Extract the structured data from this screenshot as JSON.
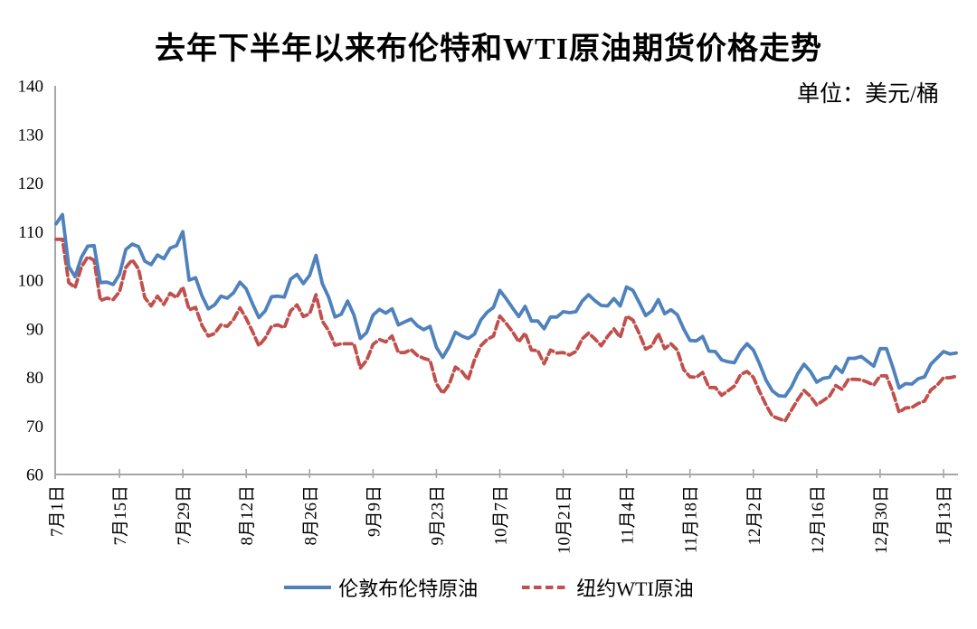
{
  "chart_data": {
    "type": "line",
    "title": "去年下半年以来布伦特和WTI原油期货价格走势",
    "unit_label": "单位：美元/桶",
    "ylim": [
      60,
      140
    ],
    "y_ticks": [
      60,
      70,
      80,
      90,
      100,
      110,
      120,
      130,
      140
    ],
    "x_tick_labels": [
      "7月1日",
      "7月15日",
      "7月29日",
      "8月12日",
      "8月26日",
      "9月9日",
      "9月23日",
      "10月7日",
      "10月21日",
      "11月4日",
      "11月18日",
      "12月2日",
      "12月16日",
      "12月30日",
      "1月13日"
    ],
    "x_tick_indices": [
      0,
      10,
      20,
      30,
      40,
      50,
      60,
      70,
      80,
      90,
      100,
      110,
      120,
      130,
      140
    ],
    "grid": false,
    "legend_position": "bottom",
    "axis_color": "#a6a6a6",
    "series": [
      {
        "id": "brent",
        "name": "伦敦布伦特原油",
        "color": "#4F81BD",
        "line_style": "solid",
        "values": [
          111.6,
          113.5,
          102.8,
          100.7,
          104.7,
          107.0,
          107.1,
          99.5,
          99.6,
          99.1,
          101.2,
          106.3,
          107.4,
          106.9,
          103.9,
          103.2,
          105.2,
          104.4,
          106.6,
          107.1,
          110.0,
          100.0,
          100.5,
          96.8,
          94.1,
          94.9,
          96.7,
          96.3,
          97.4,
          99.6,
          98.2,
          95.1,
          92.3,
          93.7,
          96.6,
          96.7,
          96.5,
          100.2,
          101.2,
          99.3,
          101.0,
          105.1,
          99.3,
          96.5,
          92.4,
          93.0,
          95.7,
          92.8,
          88.0,
          89.2,
          92.8,
          94.0,
          93.2,
          94.1,
          90.8,
          91.4,
          92.0,
          90.6,
          89.8,
          90.5,
          86.2,
          84.1,
          86.3,
          89.3,
          88.5,
          88.0,
          88.9,
          91.8,
          93.4,
          94.4,
          97.9,
          96.2,
          94.3,
          92.5,
          94.6,
          91.6,
          91.6,
          90.0,
          92.4,
          92.4,
          93.5,
          93.3,
          93.5,
          95.7,
          97.0,
          95.8,
          94.8,
          94.7,
          96.2,
          94.7,
          98.6,
          97.9,
          95.4,
          92.7,
          93.7,
          96.0,
          93.1,
          93.9,
          92.9,
          90.0,
          87.6,
          87.5,
          88.4,
          85.4,
          85.3,
          83.6,
          83.2,
          83.0,
          85.4,
          86.9,
          85.6,
          82.7,
          79.4,
          77.2,
          76.2,
          76.1,
          78.0,
          80.7,
          82.7,
          81.2,
          79.0,
          79.8,
          80.0,
          82.2,
          81.0,
          83.9,
          83.9,
          84.3,
          83.3,
          82.3,
          85.9,
          85.9,
          82.1,
          77.8,
          78.7,
          78.6,
          79.7,
          80.1,
          82.7,
          84.0,
          85.3,
          84.8,
          85.0
        ]
      },
      {
        "id": "wti",
        "name": "纽约WTI原油",
        "color": "#C0504D",
        "line_style": "dashed",
        "values": [
          108.4,
          108.4,
          99.5,
          98.5,
          102.7,
          104.8,
          104.1,
          95.8,
          96.3,
          96.0,
          97.6,
          102.6,
          104.2,
          102.3,
          96.4,
          94.7,
          96.7,
          95.0,
          97.3,
          96.4,
          98.6,
          93.9,
          94.4,
          90.7,
          88.5,
          89.0,
          90.8,
          90.5,
          91.9,
          94.3,
          92.1,
          89.4,
          86.5,
          88.1,
          90.5,
          90.8,
          90.2,
          93.7,
          94.9,
          92.5,
          93.1,
          97.0,
          91.6,
          89.6,
          86.6,
          86.9,
          86.9,
          86.9,
          81.9,
          83.5,
          86.8,
          87.8,
          87.3,
          88.5,
          85.1,
          85.1,
          85.7,
          84.5,
          83.9,
          83.5,
          78.7,
          76.7,
          78.5,
          82.1,
          81.2,
          79.5,
          83.6,
          86.5,
          87.8,
          88.5,
          92.6,
          91.1,
          89.4,
          87.3,
          89.1,
          85.6,
          85.5,
          82.8,
          85.6,
          85.0,
          85.1,
          84.6,
          85.3,
          87.9,
          89.1,
          87.9,
          86.5,
          88.4,
          90.0,
          88.2,
          92.6,
          91.8,
          89.0,
          85.8,
          86.5,
          89.0,
          85.9,
          86.9,
          85.6,
          81.6,
          80.1,
          80.0,
          81.0,
          77.9,
          77.9,
          76.3,
          77.2,
          78.2,
          80.6,
          81.2,
          80.0,
          77.0,
          74.3,
          72.0,
          71.5,
          71.0,
          73.2,
          75.4,
          77.3,
          76.1,
          74.3,
          75.2,
          76.1,
          78.3,
          77.5,
          79.6,
          79.6,
          79.5,
          79.0,
          78.4,
          80.3,
          80.3,
          77.0,
          72.8,
          73.7,
          73.8,
          74.6,
          75.1,
          77.4,
          78.4,
          79.9,
          79.9,
          80.2
        ]
      }
    ]
  }
}
